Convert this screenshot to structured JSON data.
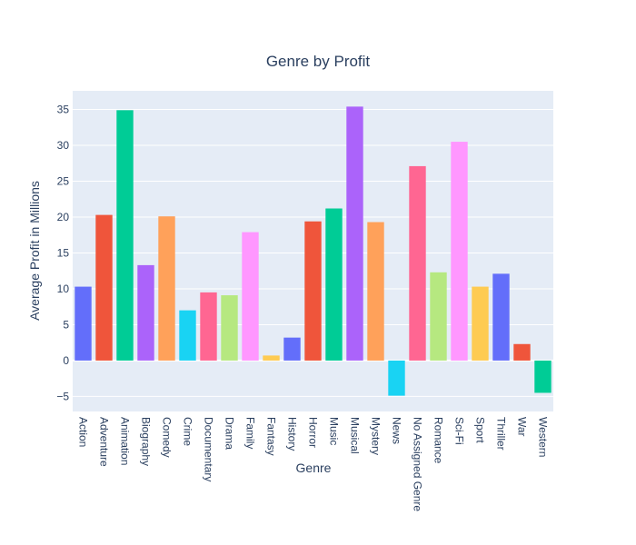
{
  "chart_data": {
    "type": "bar",
    "title": "Genre by Profit",
    "xlabel": "Genre",
    "ylabel": "Average Profit in Millions",
    "ylim": [
      -7.1,
      37.6
    ],
    "y_ticks": [
      -5,
      0,
      5,
      10,
      15,
      20,
      25,
      30,
      35
    ],
    "grid": true,
    "categories": [
      "Action",
      "Adventure",
      "Animation",
      "Biography",
      "Comedy",
      "Crime",
      "Documentary",
      "Drama",
      "Family",
      "Fantasy",
      "History",
      "Horror",
      "Music",
      "Musical",
      "Mystery",
      "News",
      "No Assigned Genre",
      "Romance",
      "Sci-Fi",
      "Sport",
      "Thriller",
      "War",
      "Western"
    ],
    "values": [
      10.3,
      20.3,
      34.9,
      13.3,
      20.1,
      7.0,
      9.5,
      9.1,
      17.9,
      0.7,
      3.2,
      19.4,
      21.2,
      35.4,
      19.3,
      -4.9,
      27.1,
      12.3,
      30.5,
      10.3,
      12.1,
      2.3,
      -4.5
    ],
    "colors": [
      "#636efa",
      "#ef553b",
      "#00cc96",
      "#ab63fa",
      "#ffa15a",
      "#19d3f3",
      "#ff6692",
      "#b6e880",
      "#ff97ff",
      "#fecb52",
      "#636efa",
      "#ef553b",
      "#00cc96",
      "#ab63fa",
      "#ffa15a",
      "#19d3f3",
      "#ff6692",
      "#b6e880",
      "#ff97ff",
      "#fecb52",
      "#636efa",
      "#ef553b",
      "#00cc96"
    ],
    "plot_background": "#e5ecf6",
    "gridline_color": "#ffffff",
    "text_color": "#2a3f5f"
  }
}
